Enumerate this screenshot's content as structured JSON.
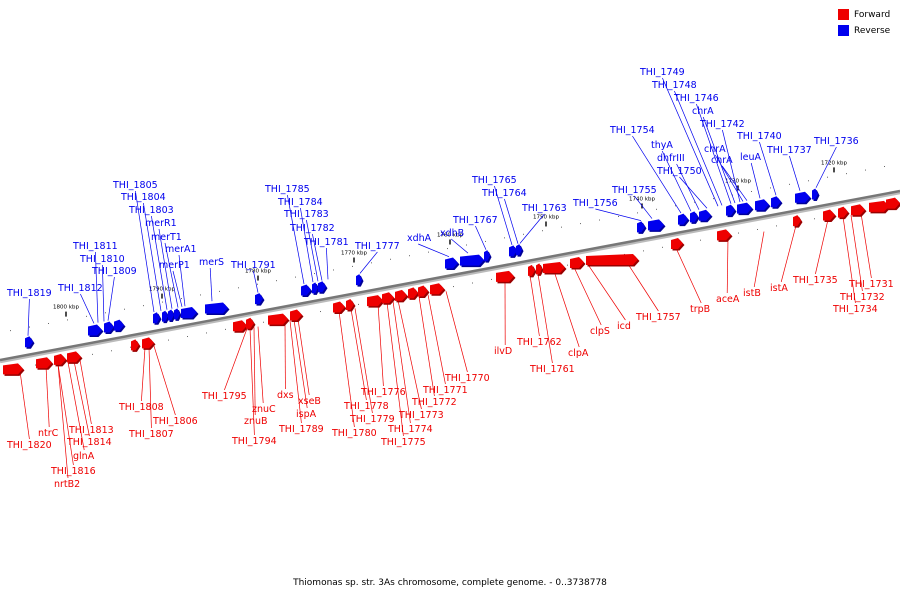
{
  "legend": [
    {
      "label": "Forward",
      "color": "#ee0000"
    },
    {
      "label": "Reverse",
      "color": "#0000ee"
    }
  ],
  "caption": "Thiomonas sp. str. 3As chromosome, complete genome. - 0..3738778",
  "colors": {
    "forward": "#ee0000",
    "forward_dark": "#990000",
    "reverse": "#0000ee",
    "reverse_dark": "#000099",
    "axis": "#888888"
  },
  "ruler": [
    {
      "label": "1800 kbp",
      "kbp": 1800
    },
    {
      "label": "1790 kbp",
      "kbp": 1790
    },
    {
      "label": "1780 kbp",
      "kbp": 1780
    },
    {
      "label": "1770 kbp",
      "kbp": 1770
    },
    {
      "label": "1760 kbp",
      "kbp": 1760
    },
    {
      "label": "1750 kbp",
      "kbp": 1750
    },
    {
      "label": "1740 kbp",
      "kbp": 1740
    },
    {
      "label": "1730 kbp",
      "kbp": 1730
    },
    {
      "label": "1720 kbp",
      "kbp": 1720
    }
  ],
  "genes": {
    "reverse": [
      "THI_1819",
      "THI_1812",
      "THI_1809",
      "THI_1810",
      "THI_1811",
      "THI_1805",
      "THI_1804",
      "THI_1803",
      "merR1",
      "merT1",
      "merA1",
      "merP1",
      "merS",
      "THI_1791",
      "THI_1785",
      "THI_1784",
      "THI_1783",
      "THI_1782",
      "THI_1781",
      "THI_1777",
      "xdhA",
      "xdhB",
      "THI_1767",
      "THI_1765",
      "THI_1764",
      "THI_1763",
      "THI_1756",
      "THI_1755",
      "THI_1754",
      "thyA",
      "dhfrIII",
      "THI_1750",
      "THI_1749",
      "THI_1748",
      "THI_1746",
      "chrA",
      "THI_1742",
      "chrA",
      "chrA",
      "leuA",
      "THI_1740",
      "THI_1737",
      "THI_1736"
    ],
    "forward": [
      "THI_1820",
      "ntrC",
      "THI_1816",
      "nrtB2",
      "glnA",
      "THI_1814",
      "THI_1813",
      "THI_1808",
      "THI_1807",
      "THI_1806",
      "THI_1795",
      "THI_1794",
      "znuB",
      "znuC",
      "dxs",
      "ispA",
      "xseB",
      "THI_1789",
      "THI_1780",
      "THI_1778",
      "THI_1779",
      "THI_1776",
      "THI_1775",
      "THI_1774",
      "THI_1773",
      "THI_1772",
      "THI_1771",
      "THI_1770",
      "ilvD",
      "THI_1762",
      "THI_1761",
      "clpA",
      "clpS",
      "icd",
      "THI_1757",
      "trpB",
      "aceA",
      "istB",
      "istA",
      "THI_1735",
      "THI_1734",
      "THI_1732",
      "THI_1731"
    ]
  }
}
